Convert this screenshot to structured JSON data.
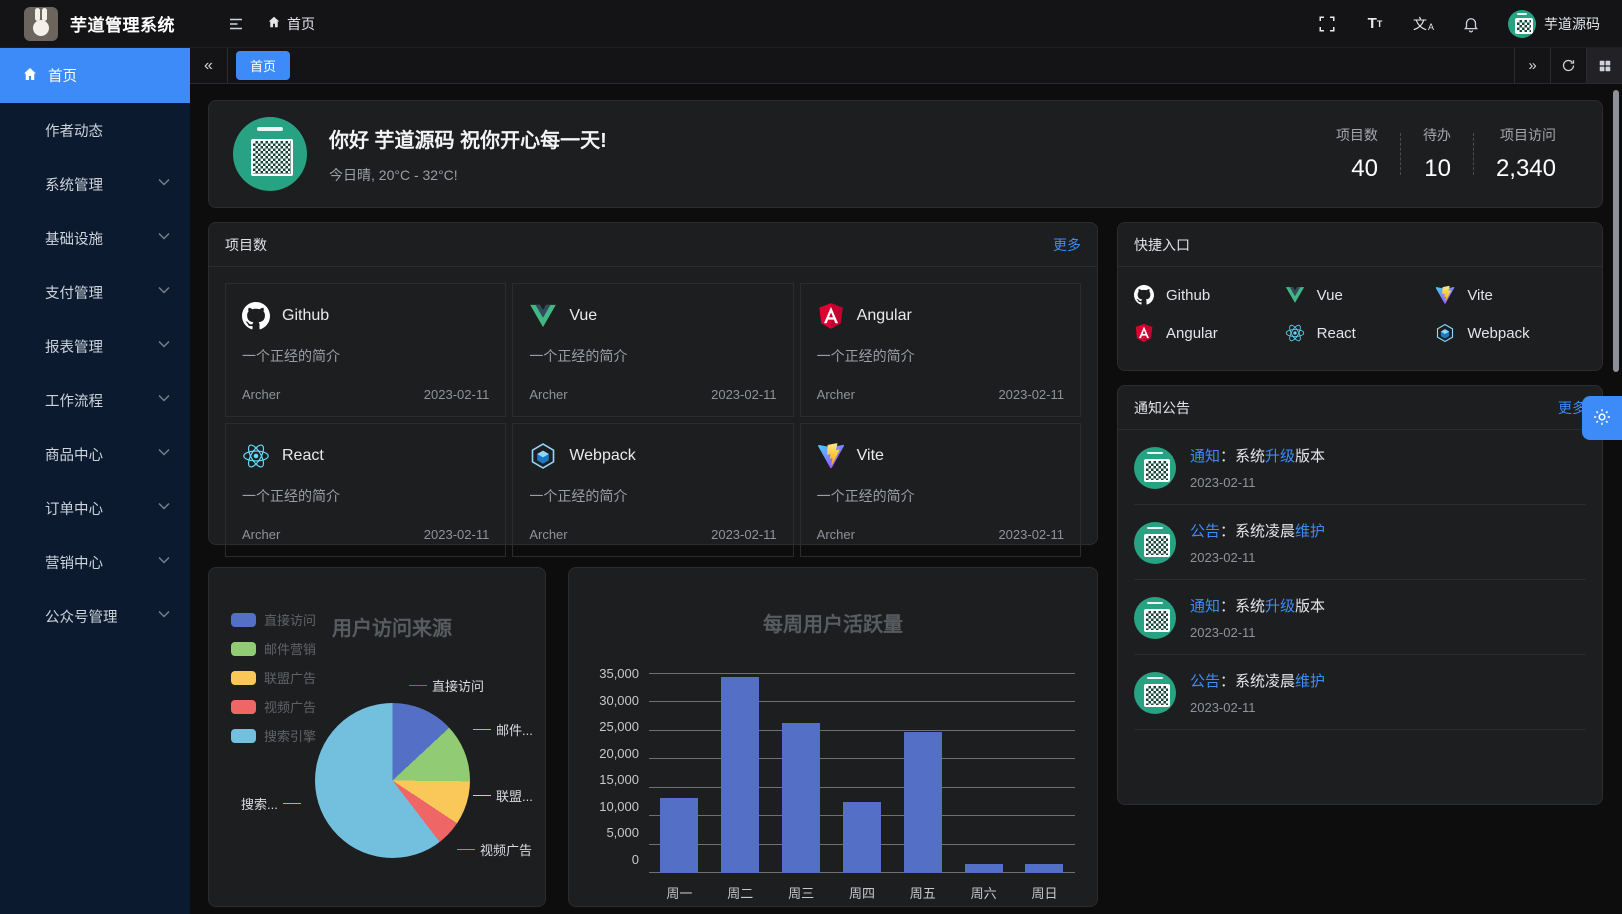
{
  "app": {
    "title": "芋道管理系统",
    "accent_color": "#3d8bf8",
    "sidebar_color": "#0b1a2e",
    "avatar_color": "#27a383"
  },
  "topbar": {
    "breadcrumb_home": "首页",
    "user_name": "芋道源码",
    "icons": [
      "menu-fold-icon",
      "home-icon",
      "fullscreen-icon",
      "font-size-icon",
      "locale-icon",
      "bell-icon"
    ]
  },
  "tabbar": {
    "active_tab": "首页",
    "icons": [
      "collapse-left-icon",
      "expand-right-icon",
      "refresh-icon",
      "grid-icon"
    ]
  },
  "sidebar": {
    "items": [
      {
        "label": "首页",
        "icon": "home-icon",
        "active": true
      },
      {
        "label": "作者动态"
      },
      {
        "label": "系统管理",
        "expandable": true
      },
      {
        "label": "基础设施",
        "expandable": true
      },
      {
        "label": "支付管理",
        "expandable": true
      },
      {
        "label": "报表管理",
        "expandable": true
      },
      {
        "label": "工作流程",
        "expandable": true
      },
      {
        "label": "商品中心",
        "expandable": true
      },
      {
        "label": "订单中心",
        "expandable": true
      },
      {
        "label": "营销中心",
        "expandable": true
      },
      {
        "label": "公众号管理",
        "expandable": true
      }
    ]
  },
  "welcome": {
    "greeting": "你好 芋道源码 祝你开心每一天!",
    "weather": "今日晴, 20°C - 32°C!",
    "stats": [
      {
        "label": "项目数",
        "value": "40"
      },
      {
        "label": "待办",
        "value": "10"
      },
      {
        "label": "项目访问",
        "value": "2,340"
      }
    ]
  },
  "projects": {
    "title": "项目数",
    "more": "更多",
    "items": [
      {
        "name": "Github",
        "icon": "github-icon",
        "desc": "一个正经的简介",
        "author": "Archer",
        "date": "2023-02-11"
      },
      {
        "name": "Vue",
        "icon": "vue-icon",
        "desc": "一个正经的简介",
        "author": "Archer",
        "date": "2023-02-11"
      },
      {
        "name": "Angular",
        "icon": "angular-icon",
        "desc": "一个正经的简介",
        "author": "Archer",
        "date": "2023-02-11"
      },
      {
        "name": "React",
        "icon": "react-icon",
        "desc": "一个正经的简介",
        "author": "Archer",
        "date": "2023-02-11"
      },
      {
        "name": "Webpack",
        "icon": "webpack-icon",
        "desc": "一个正经的简介",
        "author": "Archer",
        "date": "2023-02-11"
      },
      {
        "name": "Vite",
        "icon": "vite-icon",
        "desc": "一个正经的简介",
        "author": "Archer",
        "date": "2023-02-11"
      }
    ]
  },
  "quick_links": {
    "title": "快捷入口",
    "items": [
      {
        "label": "Github",
        "icon": "github-icon"
      },
      {
        "label": "Vue",
        "icon": "vue-icon"
      },
      {
        "label": "Vite",
        "icon": "vite-icon"
      },
      {
        "label": "Angular",
        "icon": "angular-icon"
      },
      {
        "label": "React",
        "icon": "react-icon"
      },
      {
        "label": "Webpack",
        "icon": "webpack-icon"
      }
    ]
  },
  "notices": {
    "title": "通知公告",
    "more": "更多",
    "items": [
      {
        "tag": "通知",
        "text1": "：系统",
        "link": "升级",
        "text2": "版本",
        "date": "2023-02-11"
      },
      {
        "tag": "公告",
        "text1": "：系统凌晨",
        "link": "维护",
        "text2": "",
        "date": "2023-02-11"
      },
      {
        "tag": "通知",
        "text1": "：系统",
        "link": "升级",
        "text2": "版本",
        "date": "2023-02-11"
      },
      {
        "tag": "公告",
        "text1": "：系统凌晨",
        "link": "维护",
        "text2": "",
        "date": "2023-02-11"
      }
    ]
  },
  "chart_data": [
    {
      "type": "pie",
      "title": "用户访问来源",
      "legend": [
        "直接访问",
        "邮件营销",
        "联盟广告",
        "视频广告",
        "搜索引擎"
      ],
      "values": [
        335,
        310,
        234,
        135,
        1548
      ],
      "colors": [
        "#5470c6",
        "#91cc75",
        "#fac858",
        "#ee6666",
        "#73c0de"
      ],
      "callout_labels": [
        "直接访问",
        "邮件...",
        "联盟...",
        "视频广告",
        "搜索..."
      ],
      "legend_position": "top-left",
      "start_angle_deg": 0
    },
    {
      "type": "bar",
      "title": "每周用户活跃量",
      "categories": [
        "周一",
        "周二",
        "周三",
        "周四",
        "周五",
        "周六",
        "周日"
      ],
      "values": [
        13200,
        34300,
        26300,
        12400,
        24700,
        1500,
        1500
      ],
      "ylim": [
        0,
        35000
      ],
      "yticks": [
        "35,000",
        "30,000",
        "25,000",
        "20,000",
        "15,000",
        "10,000",
        "5,000",
        "0"
      ],
      "color": "#5470c6",
      "grid": true,
      "xlabel": "",
      "ylabel": ""
    }
  ]
}
